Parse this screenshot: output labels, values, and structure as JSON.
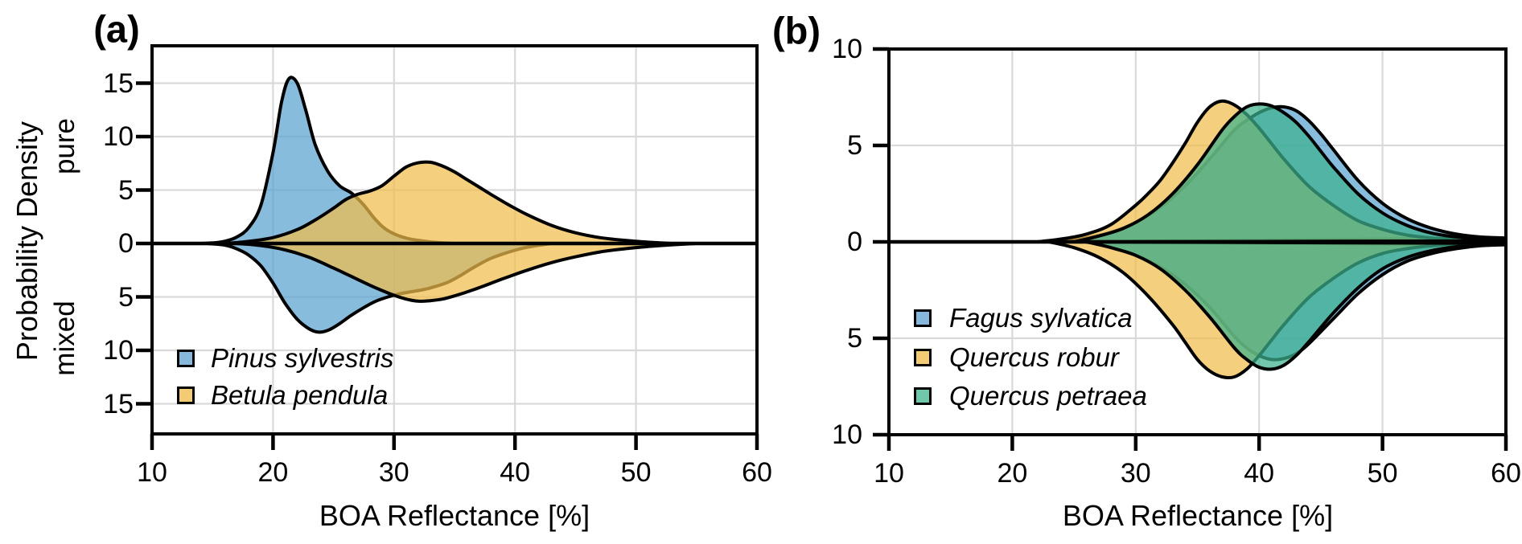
{
  "figure": {
    "background": "#ffffff",
    "grid_color": "#d9d9d9",
    "axis_color": "#000000"
  },
  "chart_data": [
    {
      "type": "area",
      "variant": "mirrored-density",
      "panel_label": "(a)",
      "xlabel": "BOA Reflectance [%]",
      "ylabel": "Probability Density",
      "upper_label": "pure",
      "lower_label": "mixed",
      "xlim": [
        10,
        60
      ],
      "ylim": [
        -17.8,
        18.5
      ],
      "xticks": [
        10,
        20,
        30,
        40,
        50,
        60
      ],
      "yticks": [
        {
          "value": 15,
          "label": "15"
        },
        {
          "value": 10,
          "label": "10"
        },
        {
          "value": 5,
          "label": "5"
        },
        {
          "value": 0,
          "label": "0"
        },
        {
          "value": -5,
          "label": "5"
        },
        {
          "value": -10,
          "label": "10"
        },
        {
          "value": -15,
          "label": "15"
        }
      ],
      "grid": true,
      "legend_position": "lower-left",
      "series": [
        {
          "name": "Pinus sylvestris",
          "color": "#5aa2d0",
          "swatch": "#85b8da",
          "x_pure": [
            14,
            15,
            16,
            17,
            18,
            19,
            20,
            20.7,
            21.3,
            22,
            22.7,
            23.5,
            24.5,
            25.5,
            26.5,
            27.5,
            28.5,
            29.5,
            31,
            33,
            35
          ],
          "y_pure": [
            0,
            0.05,
            0.2,
            0.6,
            1.5,
            3.6,
            8.5,
            13.2,
            15.4,
            15.0,
            12.5,
            9.2,
            6.8,
            5.4,
            4.7,
            3.6,
            2.2,
            1.2,
            0.5,
            0.15,
            0
          ],
          "x_mixed": [
            14.5,
            16,
            17,
            18,
            19,
            20,
            21,
            22,
            23,
            23.8,
            24.6,
            25.5,
            26.5,
            27.5,
            28.5,
            29.5,
            30.5,
            31.5,
            32.5,
            33.5,
            34.5,
            35.5,
            36.5,
            38,
            39.5,
            41,
            43
          ],
          "y_mixed": [
            0,
            -0.15,
            -0.5,
            -1.1,
            -2.1,
            -3.7,
            -5.6,
            -7.1,
            -8.0,
            -8.3,
            -8.1,
            -7.5,
            -6.7,
            -6.0,
            -5.4,
            -5.0,
            -4.7,
            -4.5,
            -4.3,
            -4.0,
            -3.6,
            -3.0,
            -2.3,
            -1.4,
            -0.8,
            -0.35,
            0
          ]
        },
        {
          "name": "Betula pendula",
          "color": "#f0bd4b",
          "swatch": "#f2cb74",
          "x_pure": [
            16,
            18,
            20,
            22,
            23.5,
            25,
            26,
            27,
            28,
            29,
            30,
            31,
            32,
            33,
            34,
            35,
            36,
            37,
            38,
            39.5,
            41,
            43,
            45,
            47,
            49,
            51,
            53
          ],
          "y_pure": [
            0,
            0.2,
            0.55,
            1.3,
            2.2,
            3.3,
            4.1,
            4.6,
            4.9,
            5.4,
            6.3,
            7.15,
            7.55,
            7.6,
            7.25,
            6.7,
            6.0,
            5.3,
            4.6,
            3.6,
            2.7,
            1.7,
            1.0,
            0.55,
            0.3,
            0.12,
            0
          ],
          "x_mixed": [
            17,
            19,
            21,
            23,
            25,
            26.5,
            28,
            29,
            30,
            31,
            32,
            33,
            34,
            35,
            36,
            37.5,
            39,
            41,
            43,
            45,
            47,
            49,
            51,
            53,
            55
          ],
          "y_mixed": [
            0,
            -0.2,
            -0.6,
            -1.3,
            -2.3,
            -3.1,
            -3.9,
            -4.4,
            -4.85,
            -5.2,
            -5.4,
            -5.35,
            -5.2,
            -4.9,
            -4.55,
            -3.95,
            -3.3,
            -2.5,
            -1.8,
            -1.25,
            -0.8,
            -0.5,
            -0.28,
            -0.12,
            0
          ]
        }
      ]
    },
    {
      "type": "area",
      "variant": "mirrored-density",
      "panel_label": "(b)",
      "xlabel": "BOA Reflectance [%]",
      "xlim": [
        10,
        60
      ],
      "ylim": [
        -10,
        10
      ],
      "xticks": [
        10,
        20,
        30,
        40,
        50,
        60
      ],
      "yticks": [
        {
          "value": 10,
          "label": "10"
        },
        {
          "value": 5,
          "label": "5"
        },
        {
          "value": 0,
          "label": "0"
        },
        {
          "value": -5,
          "label": "5"
        },
        {
          "value": -10,
          "label": "10"
        }
      ],
      "grid": true,
      "legend_position": "lower-left",
      "series": [
        {
          "name": "Fagus sylvatica",
          "color": "#5aa2d0",
          "swatch": "#85b8da",
          "x_pure": [
            24,
            26,
            28,
            30,
            32,
            34,
            36,
            38,
            39,
            40,
            41,
            42,
            43,
            44,
            45,
            46,
            48,
            50,
            52,
            54,
            56,
            58,
            60
          ],
          "y_pure": [
            0,
            0.2,
            0.5,
            1.0,
            1.8,
            2.9,
            4.3,
            5.8,
            6.3,
            6.7,
            6.95,
            7.0,
            6.8,
            6.3,
            5.6,
            4.8,
            3.2,
            2.0,
            1.2,
            0.7,
            0.4,
            0.25,
            0.2
          ],
          "x_mixed": [
            26,
            28,
            30,
            32,
            34,
            36,
            38,
            39,
            40,
            41,
            42,
            43,
            44,
            46,
            48,
            50,
            52,
            54,
            56,
            58,
            60
          ],
          "y_mixed": [
            0,
            -0.3,
            -0.7,
            -1.3,
            -2.2,
            -3.4,
            -4.9,
            -5.5,
            -5.9,
            -6.1,
            -6.05,
            -5.8,
            -5.3,
            -4.0,
            -2.7,
            -1.7,
            -1.0,
            -0.6,
            -0.35,
            -0.2,
            -0.15
          ]
        },
        {
          "name": "Quercus robur",
          "color": "#f0bd4b",
          "swatch": "#f2cb74",
          "x_pure": [
            22,
            24,
            26,
            28,
            30,
            31,
            32,
            33,
            34,
            35,
            36,
            37,
            38,
            39,
            40,
            41,
            42,
            44,
            46,
            48,
            50,
            52,
            54,
            56,
            58,
            60
          ],
          "y_pure": [
            0,
            0.15,
            0.4,
            0.9,
            1.9,
            2.5,
            3.2,
            4.1,
            5.1,
            6.2,
            7.0,
            7.3,
            7.1,
            6.6,
            5.9,
            5.1,
            4.3,
            2.9,
            1.9,
            1.1,
            0.65,
            0.35,
            0.2,
            0.1,
            0.05,
            0
          ],
          "x_mixed": [
            23,
            25,
            27,
            29,
            31,
            33,
            34,
            35,
            36,
            37,
            38,
            39,
            40,
            41,
            42,
            44,
            46,
            48,
            50,
            52,
            54,
            56,
            58,
            60
          ],
          "y_mixed": [
            0,
            -0.3,
            -0.8,
            -1.6,
            -2.8,
            -4.3,
            -5.2,
            -6.1,
            -6.7,
            -7.0,
            -7.0,
            -6.6,
            -5.9,
            -5.1,
            -4.3,
            -2.9,
            -1.9,
            -1.1,
            -0.6,
            -0.35,
            -0.2,
            -0.1,
            -0.05,
            0
          ]
        },
        {
          "name": "Quercus petraea",
          "color": "#3cb28e",
          "swatch": "#6fc7ac",
          "x_pure": [
            25,
            27,
            29,
            31,
            33,
            35,
            37,
            38,
            39,
            40,
            41,
            42,
            43,
            44,
            45,
            46,
            48,
            50,
            52,
            54,
            56,
            58,
            60
          ],
          "y_pure": [
            0,
            0.3,
            0.7,
            1.4,
            2.5,
            4.0,
            5.8,
            6.5,
            7.0,
            7.15,
            7.05,
            6.7,
            6.2,
            5.5,
            4.7,
            3.9,
            2.5,
            1.5,
            0.85,
            0.45,
            0.25,
            0.12,
            0.05
          ],
          "x_mixed": [
            26,
            28,
            30,
            32,
            34,
            36,
            38,
            39,
            40,
            41,
            42,
            43,
            44,
            46,
            48,
            50,
            52,
            54,
            56,
            58,
            60
          ],
          "y_mixed": [
            0,
            -0.3,
            -0.7,
            -1.4,
            -2.5,
            -3.9,
            -5.5,
            -6.1,
            -6.5,
            -6.6,
            -6.4,
            -5.9,
            -5.2,
            -3.7,
            -2.4,
            -1.4,
            -0.8,
            -0.45,
            -0.25,
            -0.12,
            -0.08
          ]
        }
      ]
    }
  ]
}
